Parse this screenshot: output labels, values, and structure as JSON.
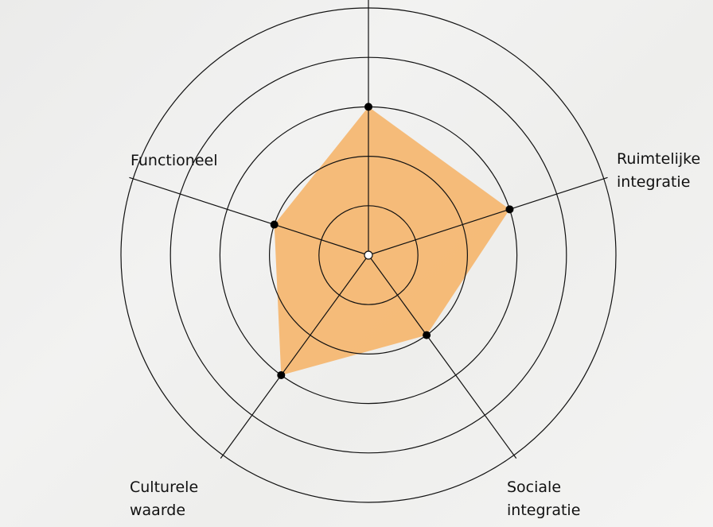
{
  "chart_data": {
    "type": "radar",
    "categories": [
      null,
      "Ruimtelijke integratie",
      "Sociale integratie",
      "Culturele waarde",
      "Functioneel"
    ],
    "values": [
      3,
      3,
      2,
      3,
      2
    ],
    "color": "#f5b56c",
    "rlim": [
      0,
      5
    ],
    "rticks": [
      1,
      2,
      3,
      4,
      5
    ],
    "grid": true
  }
}
